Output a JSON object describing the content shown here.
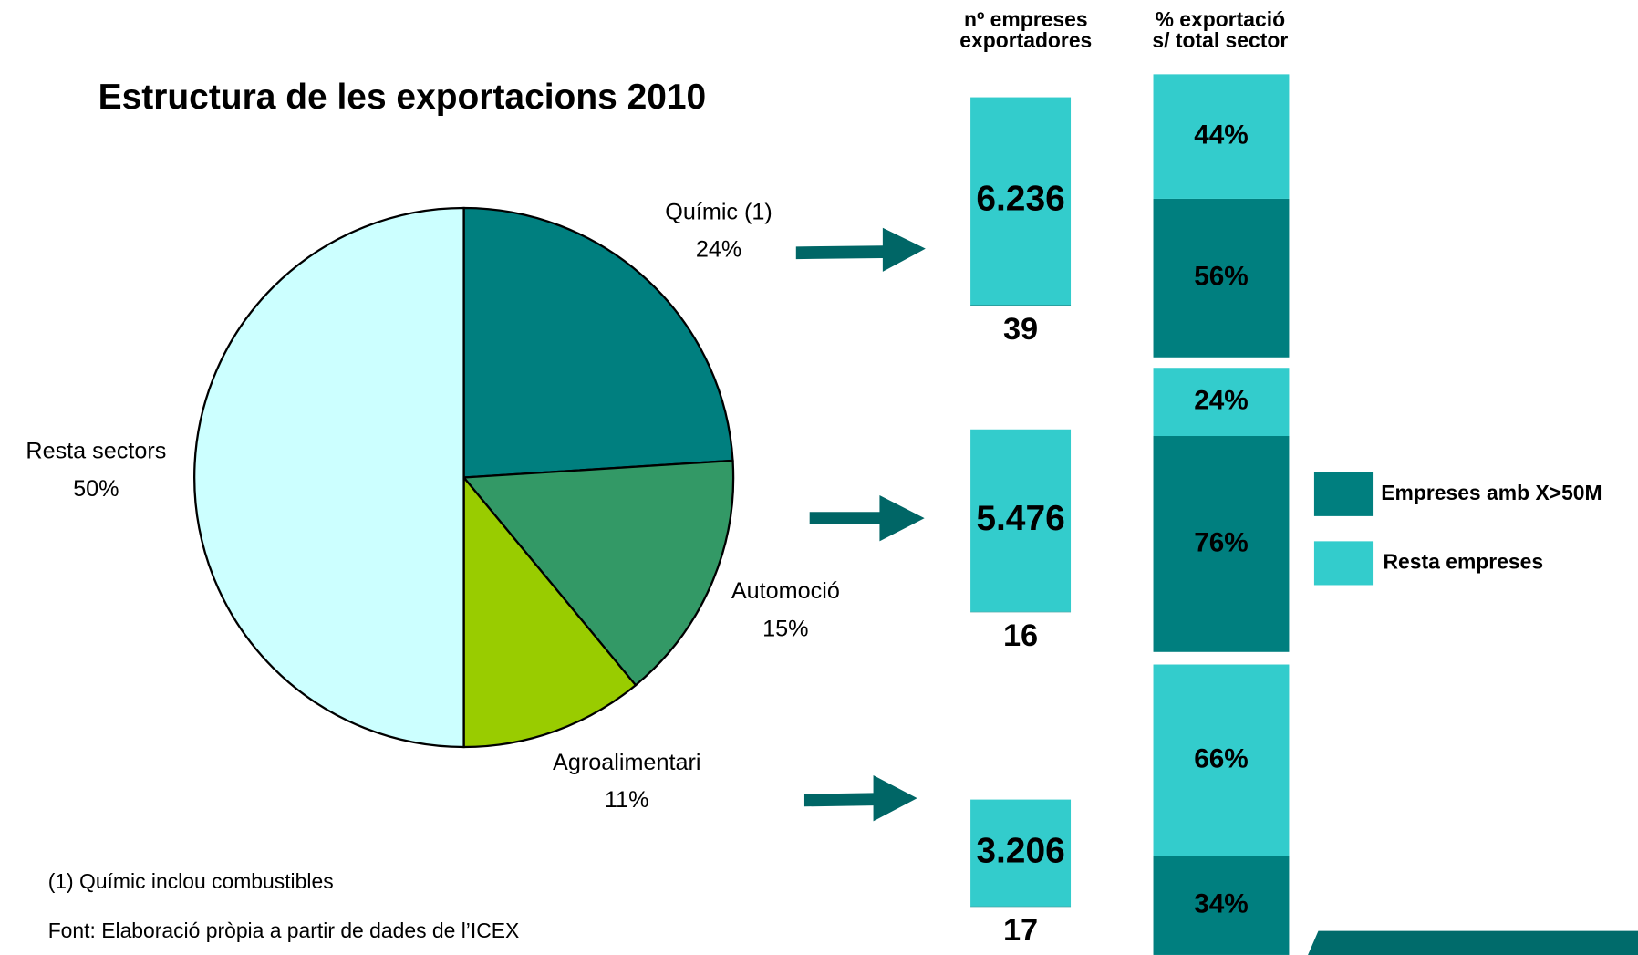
{
  "chart_data": [
    {
      "type": "pie",
      "title": "Estructura de les exportacions 2010",
      "categories": [
        "Químic (1)",
        "Automoció",
        "Agroalimentari",
        "Resta sectors"
      ],
      "values": [
        24,
        15,
        11,
        50
      ],
      "value_labels": [
        "24%",
        "15%",
        "11%",
        "50%"
      ],
      "colors": [
        "#007f7f",
        "#339966",
        "#99cc00",
        "#ccffff"
      ]
    },
    {
      "type": "bar",
      "stacked": true,
      "title": [
        "nº empreses",
        "exportadores"
      ],
      "categories": [
        null,
        null,
        null
      ],
      "series": [
        {
          "color": "#007f7f",
          "values": [
            39,
            16,
            17
          ]
        },
        {
          "color": "#33cccc",
          "values": [
            6236,
            5476,
            3206
          ],
          "value_labels": [
            "6.236",
            "5.476",
            "3.206"
          ]
        }
      ]
    },
    {
      "type": "bar",
      "stacked": true,
      "title": [
        "% exportació",
        "s/ total sector"
      ],
      "categories": [
        null,
        null,
        null
      ],
      "ylim": [
        0,
        100
      ],
      "series": [
        {
          "name": "Empreses amb X>50M",
          "color": "#007f7f",
          "values": [
            56,
            76,
            34
          ],
          "value_labels": [
            "56%",
            "76%",
            "34%"
          ]
        },
        {
          "name": "Resta empreses",
          "color": "#33cccc",
          "values": [
            44,
            24,
            66
          ],
          "value_labels": [
            "44%",
            "24%",
            "66%"
          ]
        }
      ]
    }
  ],
  "notes": [
    "(1) Químic inclou combustibles",
    "Font: Elaboració pròpia a partir de dades de l’ICEX"
  ]
}
